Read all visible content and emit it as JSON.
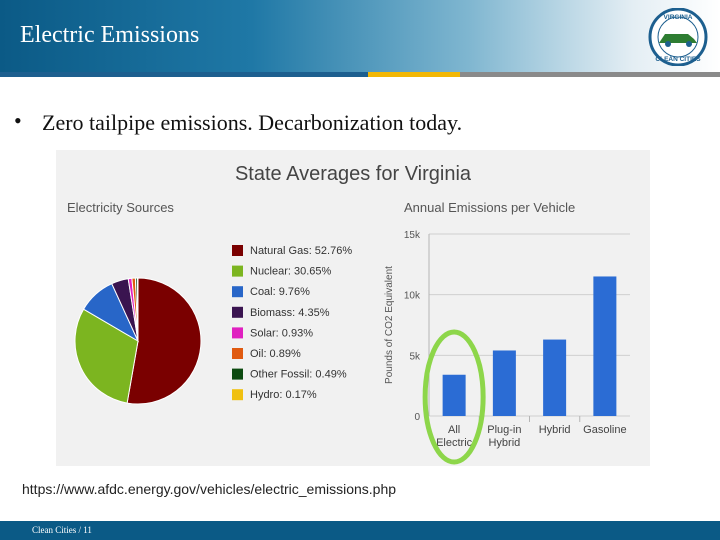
{
  "slide": {
    "title": "Electric Emissions",
    "bullet": "Zero tailpipe emissions.  Decarbonization today.",
    "source": "https://www.afdc.energy.gov/vehicles/electric_emissions.php",
    "footer": "Clean Cities  /  11",
    "logo_text": [
      "VIRGINIA",
      "CLEAN CITIES"
    ],
    "colors": {
      "header_dark": "#0b5a86",
      "stripe_yellow": "#f2b705",
      "highlight_ring": "#8dd64a",
      "bar": "#2b6cd4"
    }
  },
  "chart_data": [
    {
      "type": "pie",
      "title": "State Averages for Virginia",
      "subtitle": "Electricity Sources",
      "labels": [
        "Natural Gas",
        "Nuclear",
        "Coal",
        "Biomass",
        "Solar",
        "Oil",
        "Other Fossil",
        "Hydro"
      ],
      "values": [
        52.76,
        30.65,
        9.76,
        4.35,
        0.93,
        0.89,
        0.49,
        0.17
      ],
      "legend_text": [
        "Natural Gas: 52.76%",
        "Nuclear: 30.65%",
        "Coal: 9.76%",
        "Biomass: 4.35%",
        "Solar: 0.93%",
        "Oil: 0.89%",
        "Other Fossil: 0.49%",
        "Hydro: 0.17%"
      ],
      "colors": [
        "#7a0000",
        "#7cb520",
        "#2866c8",
        "#3a1450",
        "#e020c0",
        "#e05a10",
        "#0c4a10",
        "#f0c010"
      ],
      "legend_position": "right"
    },
    {
      "type": "bar",
      "title": "Annual Emissions per Vehicle",
      "ylabel": "Pounds of CO2 Equivalent",
      "categories": [
        [
          "All",
          "Electric"
        ],
        [
          "Plug-in",
          "Hybrid"
        ],
        [
          "Hybrid"
        ],
        [
          "Gasoline"
        ]
      ],
      "values": [
        3400,
        5400,
        6300,
        11500
      ],
      "ylim": [
        0,
        15000
      ],
      "yticks": [
        0,
        5000,
        10000,
        15000
      ],
      "ytick_labels": [
        "0",
        "5k",
        "10k",
        "15k"
      ],
      "grid": true,
      "highlight_category": "All Electric"
    }
  ]
}
